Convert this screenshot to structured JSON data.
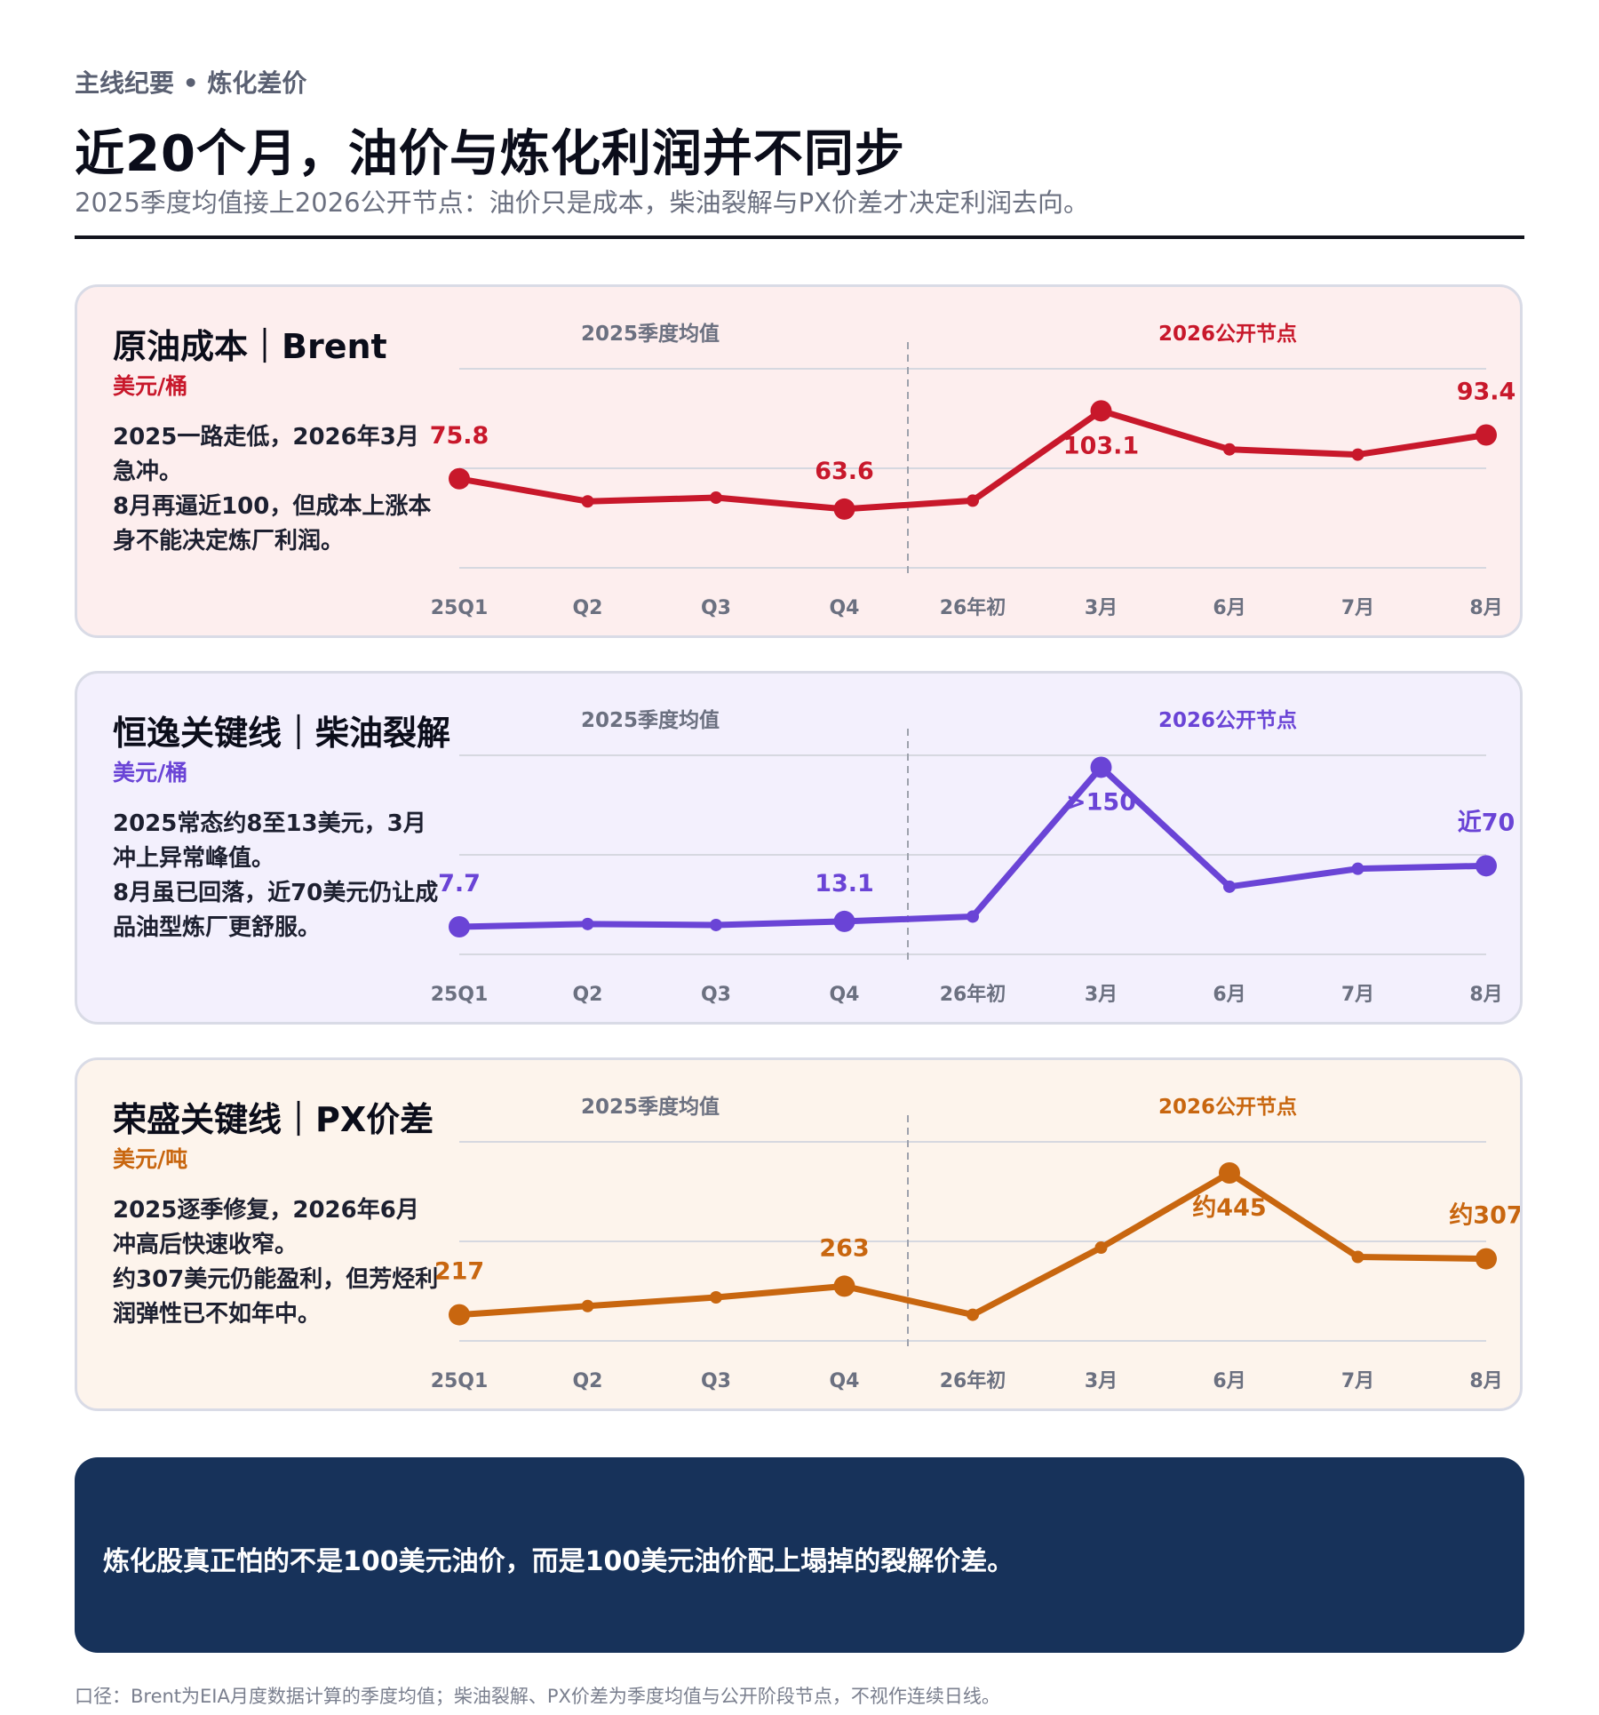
{
  "header": {
    "kicker": "主线纪要 • 炼化差价",
    "title": "近20个月，油价与炼化利润并不同步",
    "subtitle": "2025季度均值接上2026公开节点：油价只是成本，柴油裂解与PX价差才决定利润去向。"
  },
  "period_labels": {
    "left": "2025季度均值",
    "right": "2026公开节点"
  },
  "cards": [
    {
      "title": "原油成本｜Brent",
      "unit": "美元/桶",
      "note": "2025一路走低，2026年3月急冲。\n8月再逼近100，但成本上涨本身不能决定炼厂利润。",
      "accent": "#c8182b",
      "bg": "#fdeeee"
    },
    {
      "title": "恒逸关键线｜柴油裂解",
      "unit": "美元/桶",
      "note": "2025常态约8至13美元，3月冲上异常峰值。\n8月虽已回落，近70美元仍让成品油型炼厂更舒服。",
      "accent": "#6a44d6",
      "bg": "#f3f0fd"
    },
    {
      "title": "荣盛关键线｜PX价差",
      "unit": "美元/吨",
      "note": "2025逐季修复，2026年6月冲高后快速收窄。\n约307美元仍能盈利，但芳烃利润弹性已不如年中。",
      "accent": "#c8660f",
      "bg": "#fdf4ec"
    }
  ],
  "chart_data": [
    {
      "type": "line",
      "title": "原油成本｜Brent",
      "ylabel": "美元/桶",
      "categories": [
        "25Q1",
        "Q2",
        "Q3",
        "Q4",
        "26年初",
        "3月",
        "6月",
        "7月",
        "8月"
      ],
      "series": [
        {
          "values": [
            75.8,
            66.7,
            68.2,
            63.6,
            67.0,
            103.1,
            87.6,
            85.5,
            93.4
          ]
        }
      ],
      "labels": [
        {
          "index": 0,
          "text": "75.8"
        },
        {
          "index": 3,
          "text": "63.6"
        },
        {
          "index": 5,
          "text": "103.1"
        },
        {
          "index": 8,
          "text": "93.4"
        }
      ],
      "ylim": [
        40,
        120
      ],
      "grid": true
    },
    {
      "type": "line",
      "title": "恒逸关键线｜柴油裂解",
      "ylabel": "美元/桶",
      "categories": [
        "25Q1",
        "Q2",
        "Q3",
        "Q4",
        "26年初",
        "3月",
        "6月",
        "7月",
        "8月"
      ],
      "series": [
        {
          "values": [
            7.7,
            10.5,
            9.5,
            13.1,
            18.0,
            168.0,
            48.0,
            66.0,
            69.0
          ]
        }
      ],
      "labels": [
        {
          "index": 0,
          "text": "7.7"
        },
        {
          "index": 3,
          "text": "13.1"
        },
        {
          "index": 5,
          "text": ">150"
        },
        {
          "index": 8,
          "text": "近70"
        }
      ],
      "ylim": [
        -20,
        180
      ],
      "grid": true
    },
    {
      "type": "line",
      "title": "荣盛关键线｜PX价差",
      "ylabel": "美元/吨",
      "categories": [
        "25Q1",
        "Q2",
        "Q3",
        "Q4",
        "26年初",
        "3月",
        "6月",
        "7月",
        "8月"
      ],
      "series": [
        {
          "values": [
            217,
            231,
            245,
            263,
            217,
            325,
            445,
            310,
            307
          ]
        }
      ],
      "labels": [
        {
          "index": 0,
          "text": "217"
        },
        {
          "index": 3,
          "text": "263"
        },
        {
          "index": 6,
          "text": "约445"
        },
        {
          "index": 8,
          "text": "约307"
        }
      ],
      "ylim": [
        175,
        495
      ],
      "grid": true
    }
  ],
  "footer": {
    "takeaway": "炼化股真正怕的不是100美元油价，而是100美元油价配上塌掉的裂解价差。",
    "source": "口径：Brent为EIA月度数据计算的季度均值；柴油裂解、PX价差为季度均值与公开阶段节点，不视作连续日线。"
  }
}
